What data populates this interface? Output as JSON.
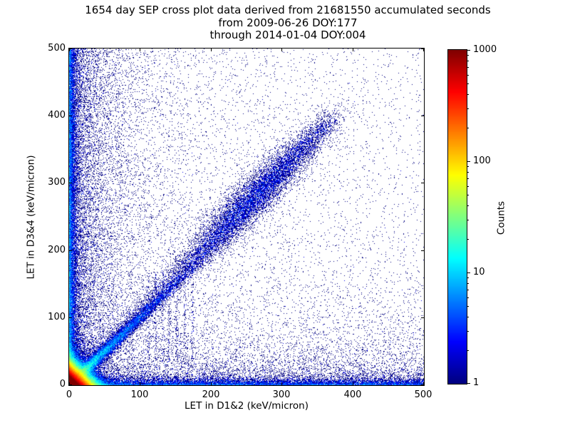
{
  "title": {
    "line1": "1654 day SEP cross plot data derived from 21681550 accumulated seconds",
    "line2": "from 2009-06-26 DOY:177",
    "line3": "through 2014-01-04 DOY:004"
  },
  "chart_data": {
    "type": "heatmap",
    "title": "1654 day SEP cross plot data derived from 21681550 accumulated seconds\nfrom 2009-06-26 DOY:177\nthrough 2014-01-04 DOY:004",
    "xlabel": "LET in D1&2 (keV/micron)",
    "ylabel": "LET in D3&4 (keV/micron)",
    "xlim": [
      0,
      500
    ],
    "ylim": [
      0,
      500
    ],
    "x_ticks": [
      0,
      100,
      200,
      300,
      400,
      500
    ],
    "y_ticks": [
      0,
      100,
      200,
      300,
      400,
      500
    ],
    "grid": false,
    "colormap": "jet",
    "color_scale": "log",
    "background": "#ffffff",
    "colorbar": {
      "label": "Counts",
      "min": 1,
      "max": 1000,
      "ticks": [
        1,
        10,
        100,
        1000
      ]
    },
    "features": [
      {
        "kind": "exp2d",
        "desc": "very dense hot core at origin (red/yellow)",
        "n": 350000,
        "sx": 7,
        "sy": 7
      },
      {
        "kind": "diag_exp",
        "desc": "bright cyan-green diagonal arm from origin",
        "n": 15000,
        "scale": 50,
        "width": 4,
        "slope": 1.0
      },
      {
        "kind": "diag_band",
        "desc": "sparse diagonal band y~x out to ~370",
        "n": 6500,
        "t_min": 0,
        "t_max": 370,
        "width": 8,
        "slope": 1.07
      },
      {
        "kind": "diag_blob",
        "desc": "dense speckle cluster on diagonal near 260",
        "n": 7000,
        "t_mean": 262,
        "t_sigma": 46,
        "width": 14,
        "slope": 1.07
      },
      {
        "kind": "v_band",
        "desc": "dense column hugging left axis",
        "n": 15000,
        "x_scale": 4,
        "y_pow": 1.25
      },
      {
        "kind": "v_band",
        "desc": "fuzzy scatter in left strip",
        "n": 9000,
        "x_scale": 32,
        "y_pow": 1.1
      },
      {
        "kind": "h_band",
        "desc": "dense band hugging bottom axis",
        "n": 10000,
        "y_scale": 4,
        "x_pow": 1.1
      },
      {
        "kind": "h_band",
        "desc": "fuzzy scatter just above bottom axis",
        "n": 5000,
        "y_scale": 28,
        "x_pow": 1.0
      },
      {
        "kind": "v_band",
        "desc": "broad sparse scatter over left half",
        "n": 4000,
        "x_scale": 130,
        "y_pow": 1.0
      },
      {
        "kind": "h_band",
        "desc": "broad sparse scatter over bottom half",
        "n": 2600,
        "y_scale": 130,
        "x_pow": 1.0
      },
      {
        "kind": "uniform",
        "desc": "isolated single-count points everywhere",
        "n": 3200
      },
      {
        "kind": "streaks",
        "desc": "faint vertical streak lines",
        "xs": [
          112,
          122,
          132,
          141,
          152,
          163,
          174
        ],
        "y_min": 35,
        "y_max": 168,
        "n_each": 90,
        "jitter": 1.1
      }
    ]
  }
}
